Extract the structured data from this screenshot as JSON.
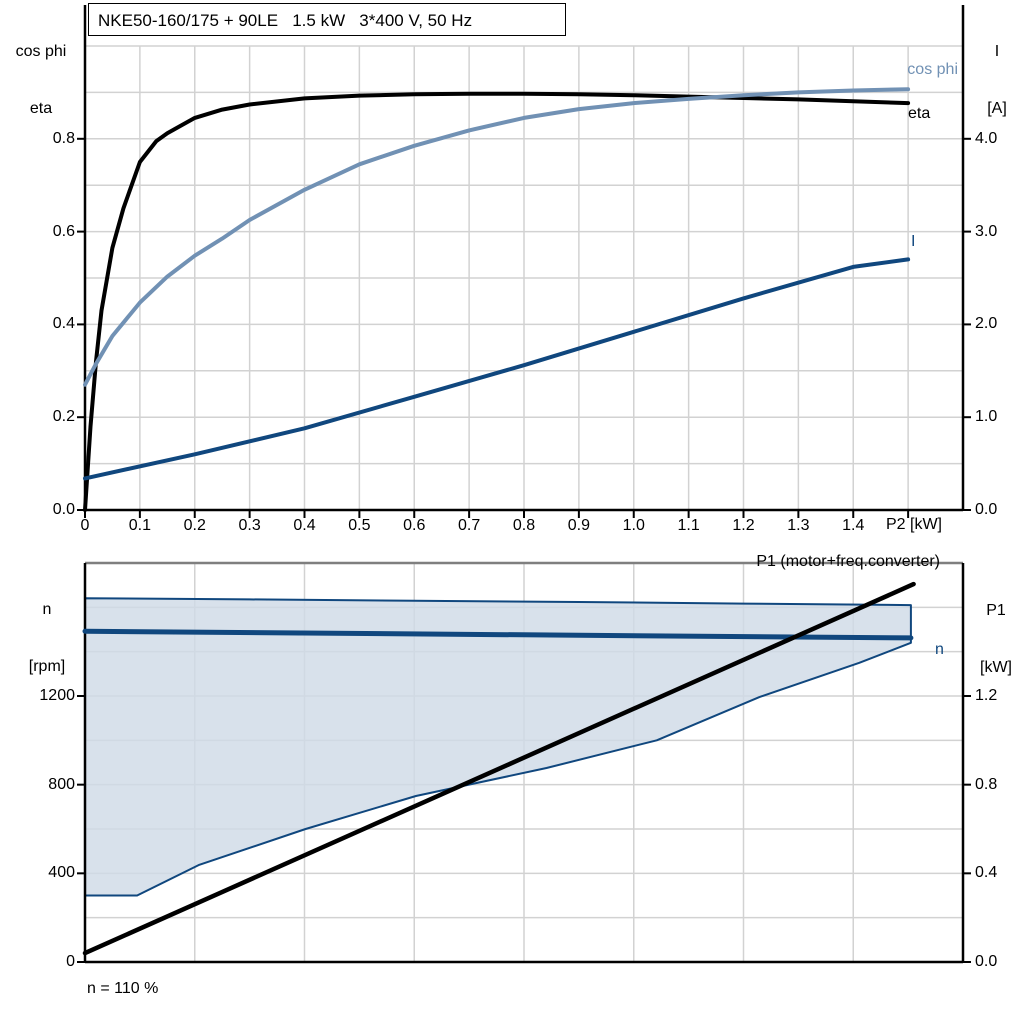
{
  "title": "NKE50-160/175 + 90LE   1.5 kW   3*400 V, 50 Hz",
  "labels": {
    "top_left_line1": "cos phi",
    "top_left_line2": "eta",
    "top_right_line1": "I",
    "top_right_line2": "[A]",
    "x_axis_label": "P2 [kW]",
    "bottom_left_line1": "n",
    "bottom_left_line2": "[rpm]",
    "bottom_right_line1": "P1",
    "bottom_right_line2": "[kW]",
    "curve_cosphi": "cos phi",
    "curve_eta": "eta",
    "curve_I": "I",
    "curve_n": "n",
    "curve_P1": "P1 (motor+freq.converter)",
    "annotation": "n = 110 %"
  },
  "colors": {
    "steel_blue": "#7191b4",
    "dark_navy": "#10477e",
    "band_fill": "#cfdae6",
    "grid": "#d2d2d2",
    "gray_border": "#7f7f7f",
    "axis": "#000000"
  },
  "chart_data": [
    {
      "type": "line",
      "title": "NKE50-160/175 + 90LE   1.5 kW   3*400 V, 50 Hz",
      "xlabel": "P2 [kW]",
      "ylabel_left": "cos phi / eta",
      "ylabel_right": "I [A]",
      "xlim": [
        0,
        1.6
      ],
      "ylim_left": [
        0,
        1.0
      ],
      "ylim_right": [
        0,
        5.0
      ],
      "grid": true,
      "grid_step_x": 0.1,
      "grid_step_y_left": 0.1,
      "x_tick_values": [
        0,
        0.1,
        0.2,
        0.3,
        0.4,
        0.5,
        0.6,
        0.7,
        0.8,
        0.9,
        1.0,
        1.1,
        1.2,
        1.3,
        1.4,
        1.5
      ],
      "x_tick_labels": [
        "0",
        "0.1",
        "0.2",
        "0.3",
        "0.4",
        "0.5",
        "0.6",
        "0.7",
        "0.8",
        "0.9",
        "1.0",
        "1.1",
        "1.2",
        "1.3",
        "1.4",
        ""
      ],
      "y_tick_values_left": [
        0,
        0.2,
        0.4,
        0.6,
        0.8
      ],
      "y_tick_labels_left": [
        "0.0",
        "0.2",
        "0.4",
        "0.6",
        "0.8"
      ],
      "y_tick_values_right": [
        0,
        1,
        2,
        3,
        4
      ],
      "y_tick_labels_right": [
        "0.0",
        "1.0",
        "2.0",
        "3.0",
        "4.0"
      ],
      "series": [
        {
          "name": "eta",
          "axis": "left",
          "color": "#000000",
          "width": 4,
          "x": [
            0,
            0.01,
            0.02,
            0.03,
            0.05,
            0.07,
            0.1,
            0.13,
            0.15,
            0.2,
            0.25,
            0.3,
            0.4,
            0.5,
            0.6,
            0.7,
            0.8,
            0.9,
            1.0,
            1.1,
            1.2,
            1.3,
            1.4,
            1.5
          ],
          "y": [
            0,
            0.18,
            0.32,
            0.43,
            0.565,
            0.65,
            0.75,
            0.795,
            0.812,
            0.845,
            0.863,
            0.874,
            0.887,
            0.893,
            0.896,
            0.897,
            0.897,
            0.896,
            0.894,
            0.891,
            0.888,
            0.885,
            0.881,
            0.877
          ]
        },
        {
          "name": "cos phi",
          "axis": "left",
          "color": "#7191b4",
          "width": 4,
          "x": [
            0,
            0.02,
            0.05,
            0.1,
            0.15,
            0.2,
            0.25,
            0.3,
            0.4,
            0.5,
            0.6,
            0.7,
            0.8,
            0.9,
            1.0,
            1.1,
            1.2,
            1.3,
            1.4,
            1.5
          ],
          "y": [
            0.27,
            0.315,
            0.375,
            0.447,
            0.503,
            0.548,
            0.585,
            0.625,
            0.69,
            0.745,
            0.785,
            0.818,
            0.845,
            0.864,
            0.877,
            0.886,
            0.894,
            0.9,
            0.904,
            0.907
          ]
        },
        {
          "name": "I",
          "axis": "right",
          "color": "#10477e",
          "width": 4,
          "x": [
            0,
            0.2,
            0.4,
            0.6,
            0.8,
            1.0,
            1.2,
            1.4,
            1.5
          ],
          "y": [
            0.34,
            0.6,
            0.88,
            1.22,
            1.56,
            1.92,
            2.28,
            2.62,
            2.7
          ]
        }
      ]
    },
    {
      "type": "line",
      "xlabel": "",
      "ylabel_left": "n [rpm]",
      "ylabel_right": "P1 [kW]",
      "xlim": [
        0,
        1.6
      ],
      "ylim_left": [
        0,
        1800
      ],
      "ylim_right": [
        0,
        1.8
      ],
      "grid": true,
      "grid_step_x": 0.2,
      "grid_step_y_left": 200,
      "y_tick_values_left": [
        0,
        400,
        800,
        1200
      ],
      "y_tick_labels_left": [
        "0",
        "400",
        "800",
        "1200"
      ],
      "y_tick_values_right": [
        0,
        0.4,
        0.8,
        1.2
      ],
      "y_tick_labels_right": [
        "0.0",
        "0.4",
        "0.8",
        "1.2"
      ],
      "annotation": "n = 110 %",
      "band": {
        "name": "speed-control-range",
        "fill": "#cfdae6",
        "edge": "#10477e",
        "x_upper": [
          0,
          0.3,
          0.6,
          0.9,
          1.2,
          1.505
        ],
        "y_upper": [
          1641,
          1636,
          1630,
          1624,
          1617,
          1610
        ],
        "x_lower": [
          0,
          0.095,
          0.207,
          0.402,
          0.603,
          0.841,
          1.042,
          1.229,
          1.411,
          1.505
        ],
        "y_lower": [
          300,
          300,
          437,
          600,
          749,
          875,
          1000,
          1195,
          1350,
          1440
        ]
      },
      "series": [
        {
          "name": "n",
          "axis": "left",
          "color": "#10477e",
          "width": 5,
          "x": [
            0,
            1.505
          ],
          "y": [
            1492,
            1462
          ]
        },
        {
          "name": "P1 (motor+freq.converter)",
          "axis": "right",
          "color": "#000000",
          "width": 4.5,
          "x": [
            0,
            1.51
          ],
          "y": [
            0.04,
            1.705
          ]
        }
      ]
    }
  ]
}
